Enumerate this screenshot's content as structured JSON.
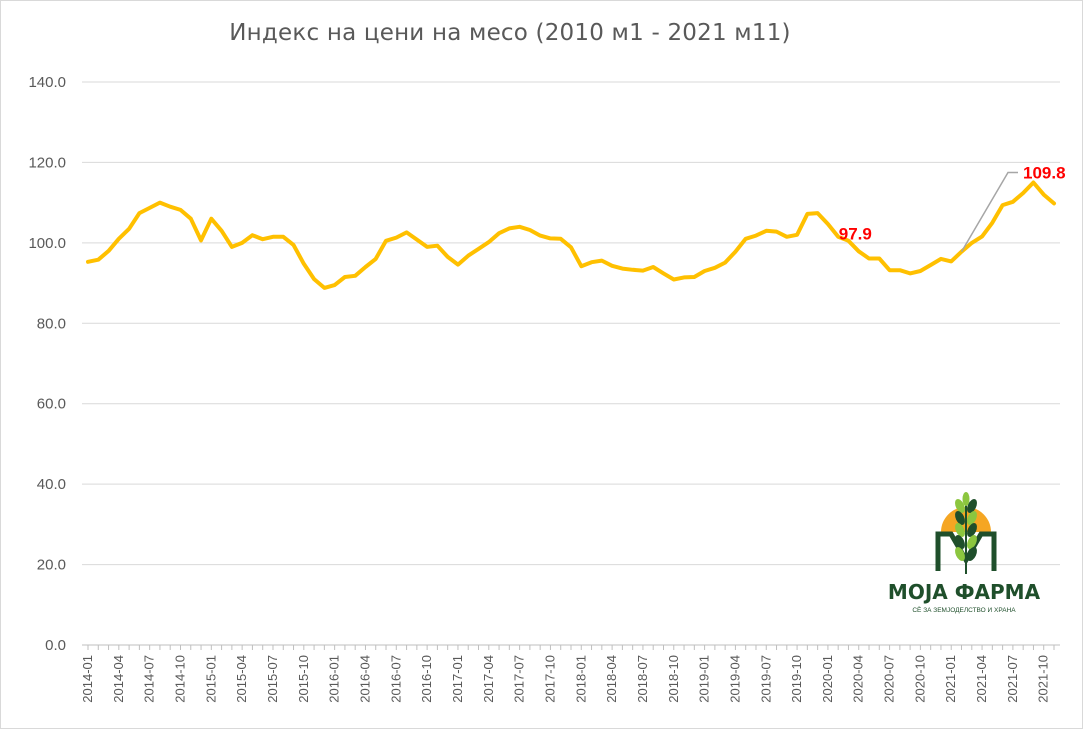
{
  "chart_data": {
    "type": "line",
    "title": "Индекс на цени на месо (2010 м1 - 2021 м11)",
    "xlabel": "",
    "ylabel": "",
    "ylim": [
      0,
      140
    ],
    "yticks": [
      "0.0",
      "20.0",
      "40.0",
      "60.0",
      "80.0",
      "100.0",
      "120.0",
      "140.0"
    ],
    "grid": true,
    "legend": "none",
    "x_tick_labels": [
      "2014-01",
      "2014-04",
      "2014-07",
      "2014-10",
      "2015-01",
      "2015-04",
      "2015-07",
      "2015-10",
      "2016-01",
      "2016-04",
      "2016-07",
      "2016-10",
      "2017-01",
      "2017-04",
      "2017-07",
      "2017-10",
      "2018-01",
      "2018-04",
      "2018-07",
      "2018-10",
      "2019-01",
      "2019-04",
      "2019-07",
      "2019-10",
      "2020-01",
      "2020-04",
      "2020-07",
      "2020-10",
      "2021-01",
      "2021-04",
      "2021-07",
      "2021-10"
    ],
    "x_start": "2014-01",
    "series": [
      {
        "color": "#ffc000",
        "values": [
          95.3,
          95.8,
          98.0,
          101.0,
          103.5,
          107.4,
          108.7,
          110.0,
          109.0,
          108.2,
          106.0,
          100.6,
          106.0,
          103.0,
          99.0,
          100.0,
          101.9,
          100.9,
          101.5,
          101.5,
          99.5,
          94.8,
          91.0,
          88.8,
          89.5,
          91.5,
          91.8,
          94.0,
          96.0,
          100.5,
          101.3,
          102.6,
          100.8,
          99.0,
          99.3,
          96.5,
          94.6,
          96.8,
          98.5,
          100.2,
          102.4,
          103.6,
          104.0,
          103.2,
          101.8,
          101.1,
          101.0,
          98.9,
          94.2,
          95.2,
          95.6,
          94.3,
          93.6,
          93.3,
          93.1,
          94.0,
          92.4,
          90.9,
          91.4,
          91.5,
          93.0,
          93.8,
          95.1,
          97.8,
          101.0,
          101.8,
          103.0,
          102.8,
          101.5,
          102.0,
          107.2,
          107.4,
          104.7,
          101.5,
          100.5,
          97.9,
          96.1,
          96.1,
          93.2,
          93.2,
          92.4,
          93.0,
          94.5,
          96.0,
          95.4,
          97.8,
          100.0,
          101.6,
          105.0,
          109.4,
          110.2,
          112.4,
          115.0,
          112.0,
          109.8
        ]
      }
    ],
    "annotations": [
      {
        "label": "97.9",
        "x": "2020-04",
        "y": 97.9
      },
      {
        "label": "109.8",
        "x": "2021-11",
        "y": 109.8
      }
    ]
  },
  "logo": {
    "name": "МОЈА ФАРМА",
    "tagline": "СЀ ЗА ЗЕМЈОДЕЛСТВО И ХРАНА",
    "sun_color": "#f5a623",
    "dark_green": "#1f4f2b",
    "light_green": "#8cc63f"
  }
}
